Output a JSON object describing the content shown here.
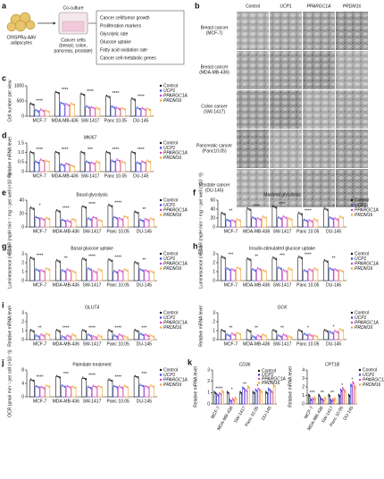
{
  "figure": {
    "a": {
      "panel_label": "a",
      "adipocyte_label": [
        "CRISPRa-AAV",
        "adipocytes"
      ],
      "coculture": "Co-culture",
      "cancer_cells": [
        "Cancer cells",
        "(breast, colon,",
        "pancreas, prostate)"
      ],
      "readouts": [
        "Cancer cell/tumor growth",
        "Proliferation markers",
        "Glycolytic rate",
        "Glucose uptake",
        "Fatty acid oxidation rate",
        "Cancer cell metabolic genes"
      ]
    },
    "b": {
      "panel_label": "b",
      "columns": [
        "Control",
        "UCP1",
        "PPARGC1A",
        "PRDM16"
      ],
      "rows": [
        [
          "Breast cancer",
          "(MCF-7)"
        ],
        [
          "Breast cancer",
          "(MDA-MB-436)"
        ],
        [
          "Colon cancer",
          "(SW-1417)"
        ],
        [
          "Pancreatic cancer",
          "(Panc10.05)"
        ],
        [
          "Prostate cancer",
          "(DU-145)"
        ]
      ]
    }
  },
  "chart_data": [
    {
      "type": "bar",
      "panel_label": "c",
      "ylabel": "Cell number per view",
      "categories": [
        "MCF-7",
        "MDA-MB-436",
        "SW-1417",
        "Panc 10.05",
        "DU-145"
      ],
      "series": [
        {
          "name": "Control",
          "color": "#111111",
          "values": [
            400,
            780,
            720,
            650,
            560
          ]
        },
        {
          "name": "UCP1",
          "color": "#3344dd",
          "values": [
            180,
            420,
            300,
            300,
            260
          ]
        },
        {
          "name": "PPARGC1A",
          "color": "#d23fb8",
          "values": [
            200,
            380,
            280,
            260,
            240
          ]
        },
        {
          "name": "PRDM16",
          "color": "#f0a030",
          "values": [
            170,
            400,
            260,
            250,
            230
          ]
        }
      ],
      "ylim": [
        0,
        1000
      ],
      "yticks": [
        0,
        500,
        1000
      ],
      "annotations": [
        "****",
        "****",
        "****",
        "****",
        "****"
      ]
    },
    {
      "type": "bar",
      "panel_label": "d",
      "title": "MKI67",
      "italic": true,
      "ylabel": "Relative mRNA level",
      "categories": [
        "MCF-7",
        "MDA-MB-436",
        "SW-1417",
        "Panc 10.05",
        "DU-145"
      ],
      "series": [
        {
          "name": "Control",
          "color": "#111111",
          "values": [
            1,
            1,
            1,
            1,
            1
          ]
        },
        {
          "name": "UCP1",
          "color": "#3344dd",
          "values": [
            0.5,
            0.35,
            0.5,
            0.55,
            0.45
          ]
        },
        {
          "name": "PPARGC1A",
          "color": "#d23fb8",
          "values": [
            0.6,
            0.4,
            0.45,
            0.6,
            0.5
          ]
        },
        {
          "name": "PRDM16",
          "color": "#f0a030",
          "values": [
            0.55,
            0.3,
            0.5,
            0.5,
            0.55
          ]
        }
      ],
      "ylim": [
        0,
        1.5
      ],
      "yticks": [
        0,
        0.5,
        {
          "value": 1,
          "label": "1.0"
        },
        1.5
      ],
      "annotations": [
        "****",
        "****",
        "***",
        "****",
        "****"
      ]
    },
    {
      "type": "bar",
      "panel_label": "e",
      "title": "Basal glycolysis",
      "ylabel": "ECAR (mpH min⁻¹ mg⁻¹ per well (×10⁻³))",
      "categories": [
        "MCF-7",
        "MDA-MB-436",
        "SW-1417",
        "Panc 10.05",
        "DU-145"
      ],
      "series": [
        {
          "name": "Control",
          "color": "#111111",
          "values": [
            28,
            24,
            30,
            32,
            22
          ]
        },
        {
          "name": "UCP1",
          "color": "#3344dd",
          "values": [
            14,
            10,
            12,
            14,
            10
          ]
        },
        {
          "name": "PPARGC1A",
          "color": "#d23fb8",
          "values": [
            12,
            9,
            14,
            12,
            11
          ]
        },
        {
          "name": "PRDM16",
          "color": "#f0a030",
          "values": [
            13,
            11,
            10,
            15,
            12
          ]
        }
      ],
      "ylim": [
        0,
        40
      ],
      "yticks": [
        0,
        20,
        40
      ],
      "annotations": [
        "*",
        "****",
        "****",
        "****",
        "**"
      ]
    },
    {
      "type": "bar",
      "panel_label": "f",
      "title": "Maximal glycolysis",
      "ylabel": "ECAR (mpH min⁻¹ mg⁻¹ per well (×10⁻³))",
      "categories": [
        "MCF-7",
        "MDA-MB-436",
        "SW-1417",
        "Panc 10.05",
        "DU-145"
      ],
      "series": [
        {
          "name": "Control",
          "color": "#111111",
          "values": [
            30,
            40,
            45,
            30,
            40
          ]
        },
        {
          "name": "UCP1",
          "color": "#3344dd",
          "values": [
            15,
            20,
            20,
            15,
            20
          ]
        },
        {
          "name": "PPARGC1A",
          "color": "#d23fb8",
          "values": [
            14,
            18,
            22,
            14,
            18
          ]
        },
        {
          "name": "PRDM16",
          "color": "#f0a030",
          "values": [
            16,
            22,
            18,
            16,
            22
          ]
        }
      ],
      "ylim": [
        0,
        60
      ],
      "yticks": [
        0,
        20,
        40,
        60
      ],
      "annotations": [
        "**",
        "****",
        "****",
        "****",
        "*"
      ]
    },
    {
      "type": "bar",
      "panel_label": "g",
      "title": "Basal glucose uptake",
      "ylabel": "Luminescence (×10⁵)",
      "categories": [
        "MCF-7",
        "MDA-MB-436",
        "SW-1417",
        "Panc 10.05",
        "DU-145"
      ],
      "series": [
        {
          "name": "Control",
          "color": "#111111",
          "values": [
            2.5,
            2.2,
            2.4,
            2.3,
            2.0
          ]
        },
        {
          "name": "UCP1",
          "color": "#3344dd",
          "values": [
            1.2,
            1.1,
            1.3,
            1.0,
            1.2
          ]
        },
        {
          "name": "PPARGC1A",
          "color": "#d23fb8",
          "values": [
            1.1,
            1.2,
            1.0,
            1.1,
            1.1
          ]
        },
        {
          "name": "PRDM16",
          "color": "#f0a030",
          "values": [
            1.3,
            1.0,
            1.2,
            1.2,
            1.0
          ]
        }
      ],
      "ylim": [
        0,
        3
      ],
      "yticks": [
        0,
        1,
        2,
        3
      ],
      "annotations": [
        "****",
        "**",
        "****",
        "****",
        "**"
      ]
    },
    {
      "type": "bar",
      "panel_label": "h",
      "title": "Insulin-stimulated glucose uptake",
      "ylabel": "Luminescence (×10⁵)",
      "categories": [
        "MCF-7",
        "MDA-MB-436",
        "SW-1417",
        "Panc 10.05",
        "DU-145"
      ],
      "series": [
        {
          "name": "Control",
          "color": "#111111",
          "values": [
            2.6,
            2.4,
            2.5,
            2.6,
            2.2
          ]
        },
        {
          "name": "UCP1",
          "color": "#3344dd",
          "values": [
            1.3,
            1.2,
            1.4,
            1.1,
            1.3
          ]
        },
        {
          "name": "PPARGC1A",
          "color": "#d23fb8",
          "values": [
            1.2,
            1.3,
            1.1,
            1.2,
            1.2
          ]
        },
        {
          "name": "PRDM16",
          "color": "#f0a030",
          "values": [
            1.4,
            1.1,
            1.3,
            1.3,
            1.1
          ]
        }
      ],
      "ylim": [
        0,
        3
      ],
      "yticks": [
        0,
        1,
        2,
        3
      ],
      "annotations": [
        "***",
        "**",
        "***",
        "****",
        "**"
      ]
    },
    {
      "type": "bar",
      "panel_label": "i",
      "title": "GLUT4",
      "italic": true,
      "ylabel": "Relative mRNA level",
      "categories": [
        "MCF-7",
        "MDA-MB-436",
        "SW-1417",
        "Panc 10.05",
        "DU-145"
      ],
      "series": [
        {
          "name": "Control",
          "color": "#111111",
          "values": [
            1,
            1,
            1,
            1,
            1
          ]
        },
        {
          "name": "UCP1",
          "color": "#3344dd",
          "values": [
            0.4,
            0.3,
            0.5,
            0.4,
            0.6
          ]
        },
        {
          "name": "PPARGC1A",
          "color": "#d23fb8",
          "values": [
            0.5,
            0.4,
            0.3,
            0.5,
            0.5
          ]
        },
        {
          "name": "PRDM16",
          "color": "#f0a030",
          "values": [
            0.6,
            0.5,
            0.4,
            0.3,
            0.4
          ]
        }
      ],
      "ylim": [
        0,
        3
      ],
      "yticks": [
        0,
        1,
        2,
        3
      ],
      "annotations": [
        "**",
        "****",
        "****",
        "****",
        "***"
      ]
    },
    {
      "type": "bar",
      "title": "GCK",
      "italic": true,
      "ylabel": "Relative mRNA level",
      "categories": [
        "MCF-7",
        "MDA-MB-436",
        "SW-1417",
        "Panc 10.05",
        "DU-145"
      ],
      "series": [
        {
          "name": "Control",
          "color": "#111111",
          "values": [
            1,
            1,
            1,
            1,
            1
          ]
        },
        {
          "name": "UCP1",
          "color": "#3344dd",
          "values": [
            0.5,
            0.3,
            0.4,
            0.6,
            0.8
          ]
        },
        {
          "name": "PPARGC1A",
          "color": "#d23fb8",
          "values": [
            0.6,
            0.4,
            0.5,
            0.5,
            0.9
          ]
        },
        {
          "name": "PRDM16",
          "color": "#f0a030",
          "values": [
            0.7,
            0.5,
            0.3,
            0.4,
            1.1
          ]
        }
      ],
      "ylim": [
        0,
        3
      ],
      "yticks": [
        0,
        1,
        2,
        3
      ],
      "annotations": [
        "**",
        "**",
        "**",
        "*",
        "*"
      ]
    },
    {
      "type": "bar",
      "panel_label": "j",
      "title": "Palmitate treatment",
      "ylabel": "OCR (pmol min⁻¹ per cell (×10⁻³))",
      "categories": [
        "MCF-7",
        "MDA-MB-436",
        "SW-1417",
        "Panc 10.05",
        "DU-145"
      ],
      "series": [
        {
          "name": "Control",
          "color": "#111111",
          "values": [
            5,
            6,
            5.5,
            5,
            6
          ]
        },
        {
          "name": "UCP1",
          "color": "#3344dd",
          "values": [
            3,
            3.2,
            2.8,
            3,
            3.4
          ]
        },
        {
          "name": "PPARGC1A",
          "color": "#d23fb8",
          "values": [
            2.8,
            3,
            3.1,
            2.9,
            3
          ]
        },
        {
          "name": "PRDM16",
          "color": "#f0a030",
          "values": [
            3.2,
            2.9,
            3,
            3.1,
            3.2
          ]
        }
      ],
      "ylim": [
        0,
        8
      ],
      "yticks": [
        0,
        4,
        8
      ],
      "annotations": [
        "****",
        "***",
        "****",
        "****",
        "***"
      ]
    },
    {
      "type": "bar",
      "panel_label": "k",
      "title": "CD36",
      "italic": true,
      "ylabel": "Relative mRNA level",
      "categories": [
        "MCF-7",
        "MDA-MB-436",
        "SW-1417",
        "Panc 10.05",
        "DU-145"
      ],
      "series": [
        {
          "name": "Control",
          "color": "#111111",
          "values": [
            1,
            1,
            1,
            1,
            1
          ]
        },
        {
          "name": "UCP1",
          "color": "#3344dd",
          "values": [
            0.8,
            0.3,
            1.4,
            1.2,
            1.3
          ]
        },
        {
          "name": "PPARGC1A",
          "color": "#d23fb8",
          "values": [
            0.9,
            0.4,
            1.2,
            1.3,
            1.1
          ]
        },
        {
          "name": "PRDM16",
          "color": "#f0a030",
          "values": [
            1.1,
            0.5,
            1.5,
            1.1,
            1.6
          ]
        }
      ],
      "ylim": [
        0,
        3
      ],
      "yticks": [
        0,
        1,
        2,
        3
      ],
      "annotations": [
        "****",
        "*",
        "**",
        "*",
        "*"
      ]
    },
    {
      "type": "bar",
      "title": "CPT1B",
      "italic": true,
      "ylabel": "Relative mRNA level",
      "categories": [
        "MCF-7",
        "MDA-MB-436",
        "SW-1417",
        "Panc 10.05",
        "DU-145"
      ],
      "series": [
        {
          "name": "Control",
          "color": "#111111",
          "values": [
            1,
            1,
            1,
            1,
            1
          ]
        },
        {
          "name": "UCP1",
          "color": "#3344dd",
          "values": [
            0.5,
            0.6,
            0.4,
            1.6,
            2.2
          ]
        },
        {
          "name": "PPARGC1A",
          "color": "#d23fb8",
          "values": [
            0.6,
            0.5,
            0.5,
            1.8,
            2.5
          ]
        },
        {
          "name": "PRDM16",
          "color": "#f0a030",
          "values": [
            0.7,
            0.7,
            0.6,
            1.5,
            2.0
          ]
        }
      ],
      "ylim": [
        0,
        4
      ],
      "yticks": [
        0,
        1,
        2,
        3,
        4
      ],
      "annotations": [
        "***",
        "**",
        "**",
        "*",
        "*"
      ]
    }
  ]
}
